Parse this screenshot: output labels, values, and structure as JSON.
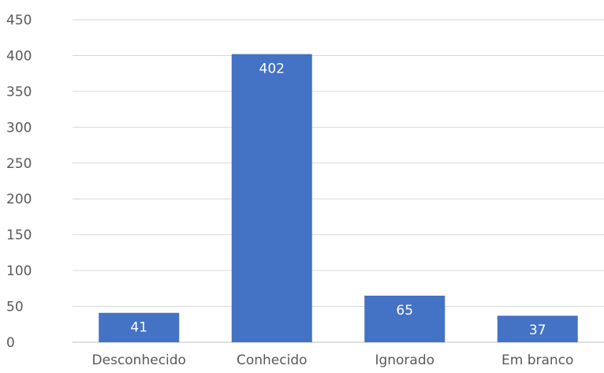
{
  "chart_data": {
    "type": "bar",
    "title": "",
    "xlabel": "",
    "ylabel": "",
    "categories": [
      "Desconhecido",
      "Conhecido",
      "Ignorado",
      "Em branco"
    ],
    "values": [
      41,
      402,
      65,
      37
    ],
    "data_labels": [
      "41",
      "402",
      "65",
      "37"
    ],
    "ylim": [
      0,
      450
    ],
    "yticks": [
      0,
      50,
      100,
      150,
      200,
      250,
      300,
      350,
      400,
      450
    ],
    "ytick_labels": [
      "0",
      "50",
      "100",
      "150",
      "200",
      "250",
      "300",
      "350",
      "400",
      "450"
    ],
    "grid": true,
    "legend": "none",
    "bar_color": "#4472c4",
    "data_label_color": "#ffffff",
    "gridline_color": "#d9d9d9"
  }
}
